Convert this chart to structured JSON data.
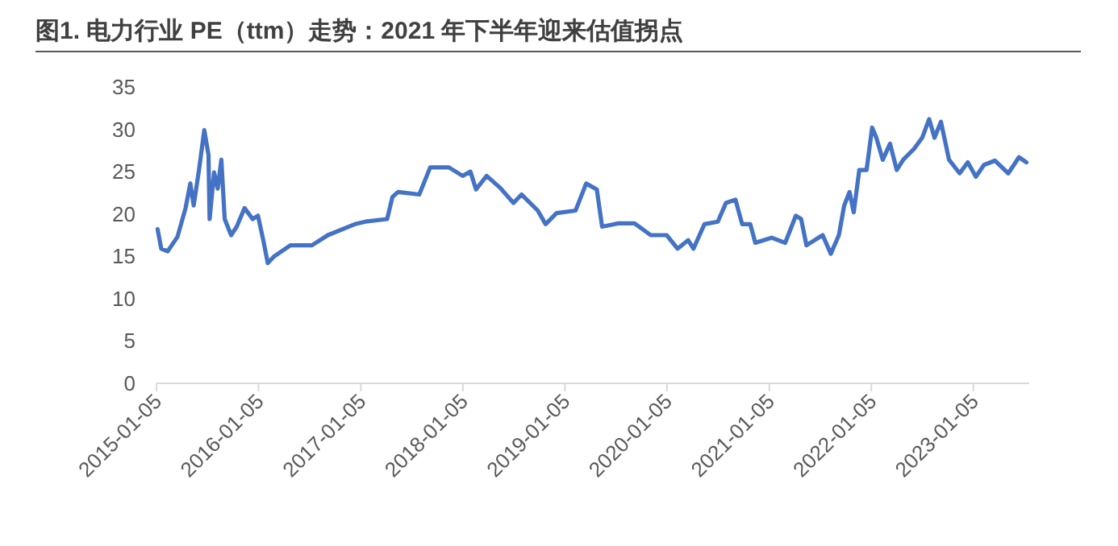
{
  "chart_data": {
    "type": "line",
    "title": "图1. 电力行业 PE（ttm）走势：2021 年下半年迎来估值拐点",
    "x": [
      "2015-01-09",
      "2015-01-22",
      "2015-02-14",
      "2015-03-21",
      "2015-04-19",
      "2015-05-06",
      "2015-05-18",
      "2015-06-06",
      "2015-06-25",
      "2015-07-10",
      "2015-07-14",
      "2015-07-30",
      "2015-08-12",
      "2015-08-25",
      "2015-09-06",
      "2015-09-29",
      "2015-10-19",
      "2015-11-16",
      "2015-12-15",
      "2016-01-03",
      "2016-01-22",
      "2016-02-07",
      "2016-03-01",
      "2016-04-28",
      "2016-07-14",
      "2016-09-09",
      "2016-12-15",
      "2017-01-22",
      "2017-04-09",
      "2017-04-28",
      "2017-05-18",
      "2017-08-02",
      "2017-09-10",
      "2017-11-16",
      "2018-01-04",
      "2018-02-01",
      "2018-02-21",
      "2018-03-31",
      "2018-05-18",
      "2018-07-05",
      "2018-08-03",
      "2018-09-30",
      "2018-10-28",
      "2018-12-06",
      "2019-02-12",
      "2019-03-22",
      "2019-04-29",
      "2019-05-18",
      "2019-07-15",
      "2019-09-11",
      "2019-11-08",
      "2020-01-04",
      "2020-02-12",
      "2020-03-21",
      "2020-04-09",
      "2020-05-18",
      "2020-07-05",
      "2020-08-03",
      "2020-09-06",
      "2020-09-30",
      "2020-10-29",
      "2020-11-16",
      "2021-01-13",
      "2021-03-03",
      "2021-04-10",
      "2021-04-29",
      "2021-05-18",
      "2021-07-15",
      "2021-08-13",
      "2021-09-11",
      "2021-09-30",
      "2021-10-19",
      "2021-11-03",
      "2021-11-23",
      "2021-12-19",
      "2022-01-08",
      "2022-01-23",
      "2022-02-15",
      "2022-03-13",
      "2022-04-06",
      "2022-04-29",
      "2022-06-07",
      "2022-07-06",
      "2022-07-31",
      "2022-08-19",
      "2022-09-11",
      "2022-10-10",
      "2022-11-17",
      "2022-12-16",
      "2023-01-14",
      "2023-02-12",
      "2023-03-23",
      "2023-05-10",
      "2023-06-17",
      "2023-07-14"
    ],
    "series": [
      {
        "color": "#4472c4",
        "values": [
          18.2,
          15.9,
          15.6,
          17.3,
          20.7,
          23.6,
          21,
          25.2,
          29.9,
          27,
          19.4,
          24.9,
          23,
          26.4,
          19.4,
          17.5,
          18.5,
          20.7,
          19.4,
          19.8,
          16.9,
          14.2,
          15,
          16.3,
          16.3,
          17.5,
          18.8,
          19.1,
          19.4,
          22,
          22.6,
          22.3,
          25.5,
          25.5,
          24.5,
          25,
          22.9,
          24.5,
          23.1,
          21.3,
          22.3,
          20.4,
          18.8,
          20.1,
          20.4,
          23.6,
          22.9,
          18.5,
          18.9,
          18.9,
          17.5,
          17.5,
          15.9,
          16.9,
          15.9,
          18.8,
          19.1,
          21.3,
          21.7,
          18.8,
          18.8,
          16.6,
          17.2,
          16.6,
          19.8,
          19.4,
          16.3,
          17.5,
          15.3,
          17.5,
          21,
          22.6,
          20.2,
          25.2,
          25.2,
          30.2,
          29,
          26.4,
          28.3,
          25.2,
          26.4,
          27.7,
          29,
          31.2,
          29,
          30.9,
          26.4,
          24.8,
          26.1,
          24.4,
          25.8,
          26.3,
          24.8,
          26.7,
          26.1
        ]
      }
    ],
    "xlim": [
      "2015-01-05",
      "2023-07-24"
    ],
    "xticks": [
      "2015-01-05",
      "2016-01-05",
      "2017-01-05",
      "2018-01-05",
      "2019-01-05",
      "2020-01-05",
      "2021-01-05",
      "2022-01-05",
      "2023-01-05"
    ],
    "ylim": [
      0,
      35
    ],
    "yticks": [
      0,
      5,
      10,
      15,
      20,
      25,
      30,
      35
    ],
    "marker": "none",
    "line_style": "solid"
  }
}
